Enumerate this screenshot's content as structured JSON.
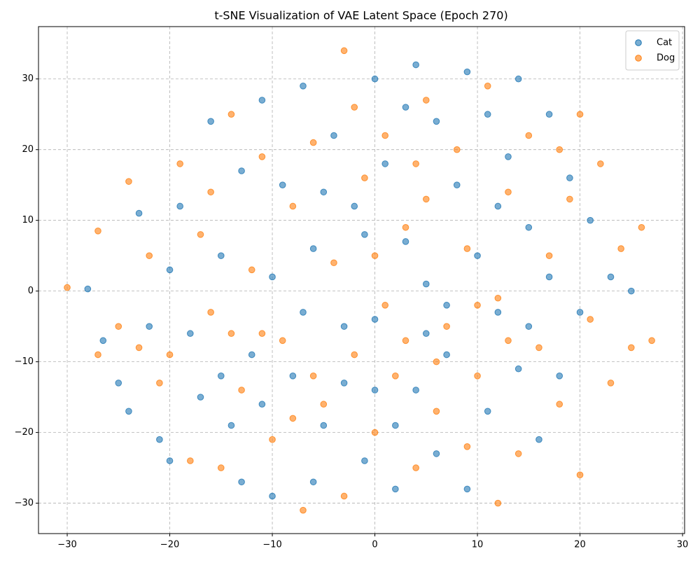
{
  "chart_data": {
    "type": "scatter",
    "title": "t-SNE Visualization of VAE Latent Space (Epoch 270)",
    "xlim": [
      -32.8,
      30.2
    ],
    "ylim": [
      -34.3,
      37.4
    ],
    "xticks": [
      {
        "value": -30,
        "label": "−30"
      },
      {
        "value": -20,
        "label": "−20"
      },
      {
        "value": -10,
        "label": "−10"
      },
      0,
      10,
      20,
      30
    ],
    "yticks": [
      {
        "value": -30,
        "label": "−30"
      },
      {
        "value": -20,
        "label": "−20"
      },
      {
        "value": -10,
        "label": "−10"
      },
      0,
      10,
      20,
      30
    ],
    "grid": true,
    "legend": "upper-right",
    "series": [
      {
        "name": "Cat",
        "color": "#1f77b4",
        "x": [
          -28,
          -26.5,
          -24,
          -22,
          -20,
          -19,
          -17,
          -16,
          -15,
          -14,
          -13,
          -12,
          -11,
          -10,
          -10,
          -9,
          -8,
          -7,
          -6,
          -6,
          -5,
          -4,
          -3,
          -2,
          -1,
          0,
          0,
          1,
          2,
          3,
          4,
          4,
          5,
          6,
          6,
          7,
          8,
          9,
          9,
          10,
          11,
          11,
          12,
          13,
          14,
          14,
          15,
          16,
          17,
          17,
          18,
          19,
          20,
          21,
          23,
          25,
          -18,
          -21,
          -23,
          -13,
          -3,
          2,
          7,
          -7,
          -1,
          3,
          12,
          -15,
          -11,
          -5,
          0,
          5,
          15,
          -25,
          -20
        ],
        "values": [
          0.3,
          -7,
          -17,
          -5,
          3,
          12,
          -15,
          24,
          5,
          -19,
          17,
          -9,
          27,
          -29,
          2,
          15,
          -12,
          29,
          -27,
          6,
          -19,
          22,
          -5,
          12,
          -24,
          30,
          -4,
          18,
          -28,
          7,
          -14,
          32,
          1,
          24,
          -23,
          -9,
          15,
          -28,
          31,
          5,
          -17,
          25,
          -3,
          19,
          -11,
          30,
          9,
          -21,
          2,
          25,
          -12,
          16,
          -3,
          10,
          2,
          0,
          -6,
          -21,
          11,
          -27,
          -13,
          -19,
          -2,
          -3,
          8,
          26,
          12,
          -12,
          -16,
          14,
          -14,
          -6,
          -5,
          -13,
          -24
        ]
      },
      {
        "name": "Dog",
        "color": "#ff7f0e",
        "x": [
          -30,
          -27,
          -27,
          -25,
          -24,
          -22,
          -21,
          -19,
          -18,
          -17,
          -16,
          -15,
          -14,
          -13,
          -12,
          -11,
          -10,
          -9,
          -8,
          -7,
          -6,
          -5,
          -4,
          -3,
          -3,
          -2,
          -1,
          0,
          1,
          1,
          2,
          3,
          4,
          5,
          5,
          6,
          7,
          8,
          9,
          9,
          10,
          11,
          12,
          12,
          13,
          14,
          15,
          16,
          17,
          18,
          19,
          20,
          20,
          21,
          22,
          23,
          24,
          25,
          26,
          27,
          -20,
          -16,
          -11,
          -6,
          0,
          6,
          13,
          -8,
          4,
          10,
          -23,
          -14,
          3,
          18,
          -2
        ],
        "values": [
          0.5,
          8.5,
          -9,
          -5,
          15.5,
          5,
          -13,
          18,
          -24,
          8,
          -3,
          -25,
          25,
          -14,
          3,
          19,
          -21,
          -7,
          12,
          -31,
          21,
          -16,
          4,
          34,
          -29,
          -9,
          16,
          -20,
          22,
          -2,
          -12,
          9,
          -25,
          13,
          27,
          -17,
          -5,
          20,
          -22,
          6,
          -12,
          29,
          -1,
          -30,
          14,
          -23,
          22,
          -8,
          5,
          -16,
          13,
          -26,
          25,
          -4,
          18,
          -13,
          6,
          -8,
          9,
          -7,
          -9,
          14,
          -6,
          -12,
          5,
          -10,
          -7,
          -18,
          18,
          -2,
          -8,
          -6,
          -7,
          20,
          26
        ]
      }
    ]
  }
}
